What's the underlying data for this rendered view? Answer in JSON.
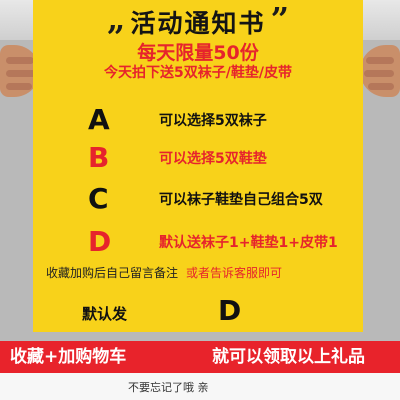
{
  "poster": {
    "title_quote": "„",
    "title": "活动通知书",
    "title_quote_close": "”",
    "daily_limit": "每天限量50份",
    "today_offer": "今天拍下送5双袜子/鞋垫/皮带",
    "options": [
      {
        "letter": "A",
        "text": "可以选择5双袜子",
        "letter_color": "#111111",
        "text_color": "#111111"
      },
      {
        "letter": "B",
        "text": "可以选择5双鞋垫",
        "letter_color": "#e6242c",
        "text_color": "#e6242c"
      },
      {
        "letter": "C",
        "text": "可以袜子鞋垫自己组合5双",
        "letter_color": "#111111",
        "text_color": "#111111"
      },
      {
        "letter": "D",
        "text": "默认送袜子1+鞋垫1+皮带1",
        "letter_color": "#e6242c",
        "text_color": "#e6242c"
      }
    ],
    "note_black": "收藏加购后自己留言备注",
    "note_red": "或者告诉客服即可",
    "default_label": "默认发",
    "default_letter": "D"
  },
  "banner": {
    "left": "收藏+加购物车",
    "right": "就可以领取以上礼品"
  },
  "footer": {
    "text": "不要忘记了哦    亲"
  },
  "colors": {
    "poster": "#f8d21a",
    "accent": "#e6242c",
    "banner": "#e8232b"
  }
}
